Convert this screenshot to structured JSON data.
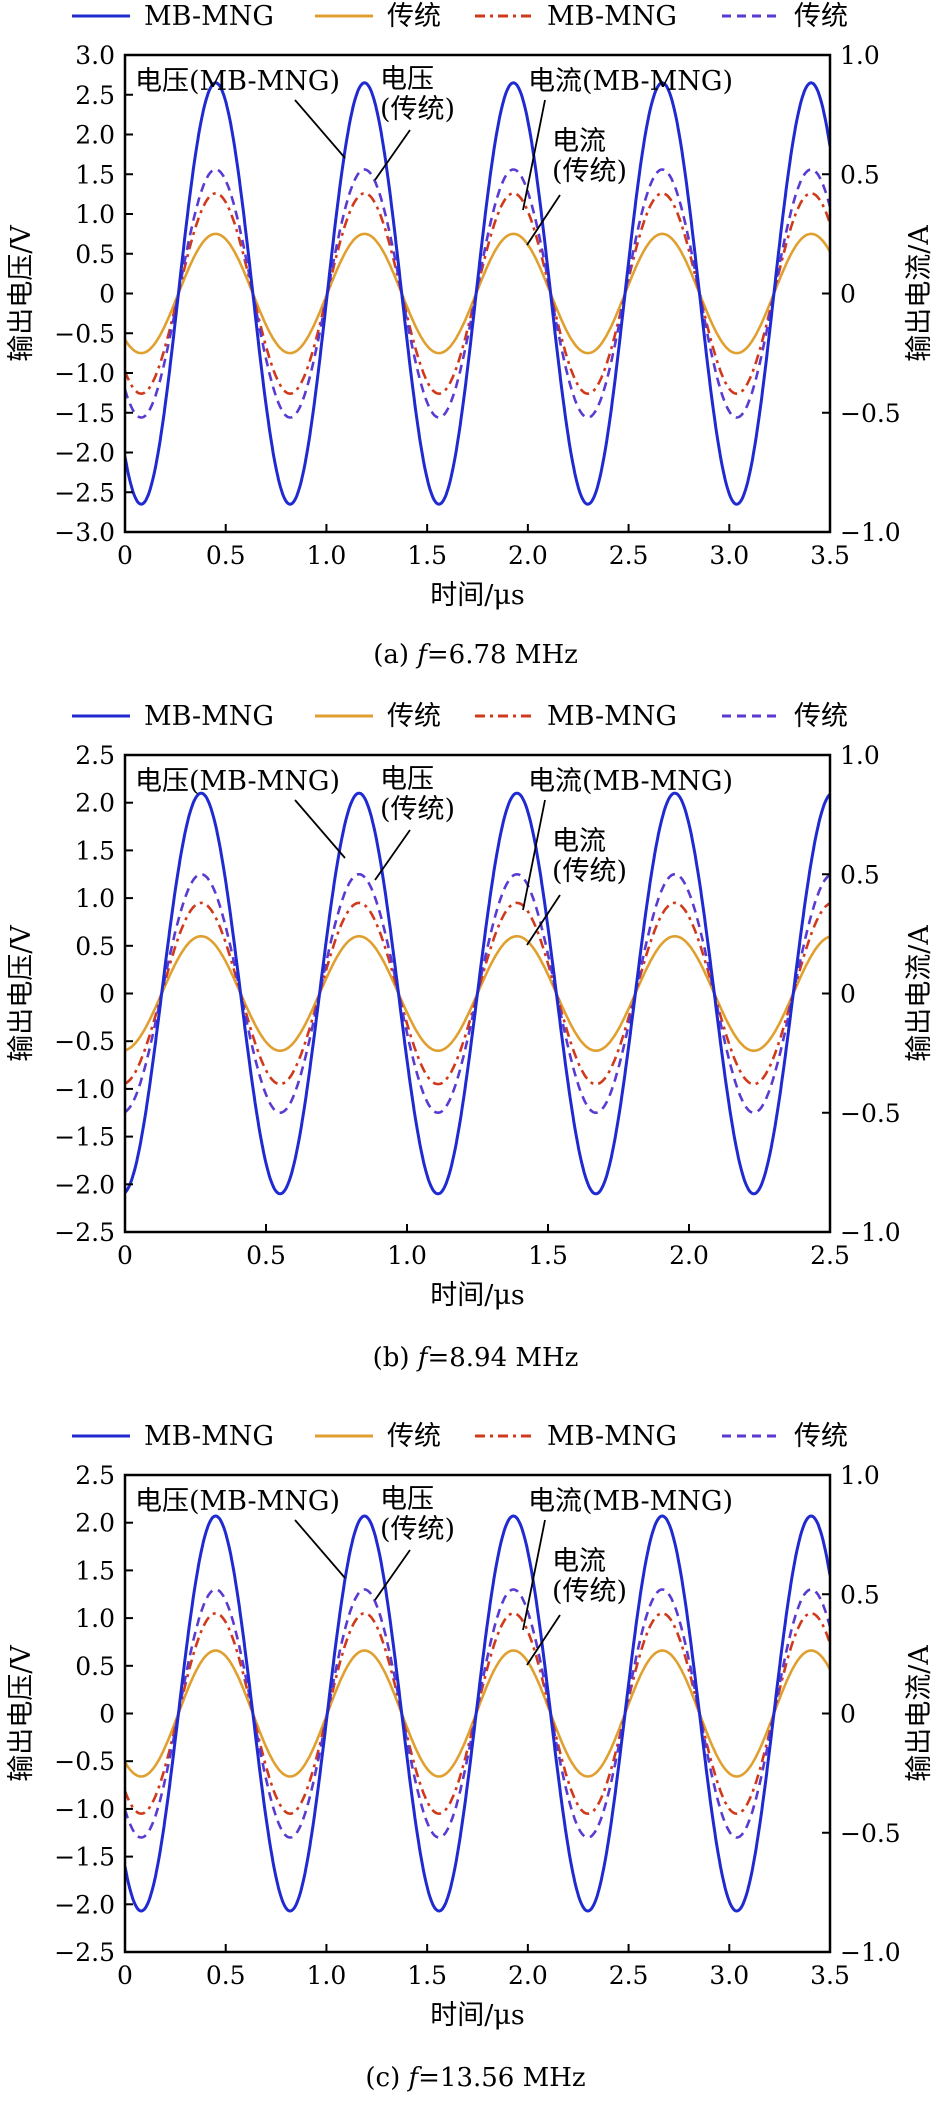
{
  "colors": {
    "voltage_mbmng": "#1f2ad0",
    "voltage_trad": "#e0a030",
    "current_mbmng": "#d03a1a",
    "current_trad": "#5a3ad0"
  },
  "legend": [
    "MB-MNG",
    "传统",
    "MB-MNG",
    "传统"
  ],
  "annotations": {
    "v_mb": "电压(MB-MNG)",
    "v_trad_1": "电压",
    "v_trad_2": "(传统)",
    "i_mb": "电流(MB-MNG)",
    "i_trad_1": "电流",
    "i_trad_2": "(传统)"
  },
  "chart_data": [
    {
      "type": "line",
      "caption_prefix": "(a)",
      "caption_var": "f",
      "caption_value": "=6.78 MHz",
      "xlabel": "时间/μs",
      "ylabel": "输出电压/V",
      "y2label": "输出电流/A",
      "xlim": [
        0,
        3.5
      ],
      "ylim": [
        -3.0,
        3.0
      ],
      "y2lim": [
        -1.0,
        1.0
      ],
      "xticks": [
        "0",
        "0.5",
        "1.0",
        "1.5",
        "2.0",
        "2.5",
        "3.0",
        "3.5"
      ],
      "yticks": [
        "3.0",
        "2.5",
        "2.0",
        "1.5",
        "1.0",
        "0.5",
        "0",
        "−0.5",
        "−1.0",
        "−1.5",
        "−2.0",
        "−2.5",
        "−3.0"
      ],
      "y2ticks": [
        "1.0",
        "0.5",
        "0",
        "−0.5",
        "−1.0"
      ],
      "frequency_mhz": 1.353,
      "phase_peak_us": 0.45,
      "series": [
        {
          "name": "MB-MNG",
          "quantity": "voltage",
          "axis": "left",
          "amplitude": 2.65,
          "style": "solid"
        },
        {
          "name": "传统",
          "quantity": "voltage",
          "axis": "left",
          "amplitude": 0.75,
          "style": "solid"
        },
        {
          "name": "MB-MNG",
          "quantity": "current",
          "axis": "right",
          "amplitude": 0.42,
          "style": "dashdot"
        },
        {
          "name": "传统",
          "quantity": "current",
          "axis": "right",
          "amplitude": 0.52,
          "style": "dashed"
        }
      ]
    },
    {
      "type": "line",
      "caption_prefix": "(b)",
      "caption_var": "f",
      "caption_value": "=8.94 MHz",
      "xlabel": "时间/μs",
      "ylabel": "输出电压/V",
      "y2label": "输出电流/A",
      "xlim": [
        0,
        2.5
      ],
      "ylim": [
        -2.5,
        2.5
      ],
      "y2lim": [
        -1.0,
        1.0
      ],
      "xticks": [
        "0",
        "0.5",
        "1.0",
        "1.5",
        "2.0",
        "2.5"
      ],
      "yticks": [
        "2.5",
        "2.0",
        "1.5",
        "1.0",
        "0.5",
        "0",
        "−0.5",
        "−1.0",
        "−1.5",
        "−2.0",
        "−2.5"
      ],
      "y2ticks": [
        "1.0",
        "0.5",
        "0",
        "−0.5",
        "−1.0"
      ],
      "frequency_mhz": 1.786,
      "phase_peak_us": 0.27,
      "series": [
        {
          "name": "MB-MNG",
          "quantity": "voltage",
          "axis": "left",
          "amplitude": 2.1,
          "style": "solid"
        },
        {
          "name": "传统",
          "quantity": "voltage",
          "axis": "left",
          "amplitude": 0.6,
          "style": "solid"
        },
        {
          "name": "MB-MNG",
          "quantity": "current",
          "axis": "right",
          "amplitude": 0.38,
          "style": "dashdot"
        },
        {
          "name": "传统",
          "quantity": "current",
          "axis": "right",
          "amplitude": 0.5,
          "style": "dashed"
        }
      ]
    },
    {
      "type": "line",
      "caption_prefix": "(c)",
      "caption_var": "f",
      "caption_value": "=13.56 MHz",
      "xlabel": "时间/μs",
      "ylabel": "输出电压/V",
      "y2label": "输出电流/A",
      "xlim": [
        0,
        3.5
      ],
      "ylim": [
        -2.5,
        2.5
      ],
      "y2lim": [
        -1.0,
        1.0
      ],
      "xticks": [
        "0",
        "0.5",
        "1.0",
        "1.5",
        "2.0",
        "2.5",
        "3.0",
        "3.5"
      ],
      "yticks": [
        "2.5",
        "2.0",
        "1.5",
        "1.0",
        "0.5",
        "0",
        "−0.5",
        "−1.0",
        "−1.5",
        "−2.0",
        "−2.5"
      ],
      "y2ticks": [
        "1.0",
        "0.5",
        "0",
        "−0.5",
        "−1.0"
      ],
      "frequency_mhz": 1.353,
      "phase_peak_us": 0.45,
      "series": [
        {
          "name": "MB-MNG",
          "quantity": "voltage",
          "axis": "left",
          "amplitude": 2.07,
          "style": "solid"
        },
        {
          "name": "传统",
          "quantity": "voltage",
          "axis": "left",
          "amplitude": 0.66,
          "style": "solid"
        },
        {
          "name": "MB-MNG",
          "quantity": "current",
          "axis": "right",
          "amplitude": 0.42,
          "style": "dashdot"
        },
        {
          "name": "传统",
          "quantity": "current",
          "axis": "right",
          "amplitude": 0.52,
          "style": "dashed"
        }
      ]
    }
  ]
}
